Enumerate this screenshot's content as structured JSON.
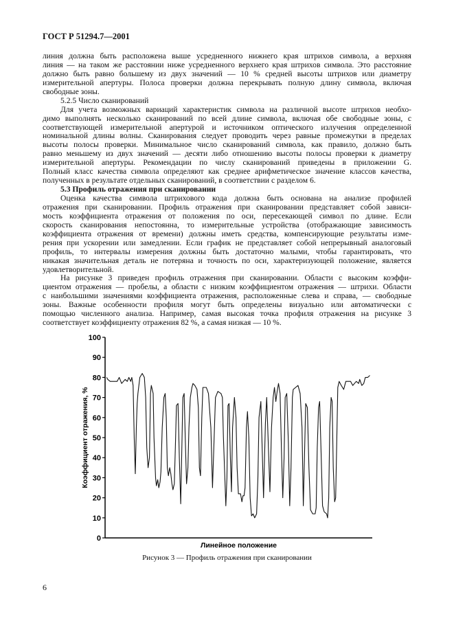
{
  "header": "ГОСТ Р 51294.7—2001",
  "body_lines": [
    {
      "t": "линия должна быть расположена выше усредненного нижнего края штрихов символа, а верхняя"
    },
    {
      "t": "линия — на таком же расстоянии ниже усредненного верхнего края штрихов символа. Это расстояние"
    },
    {
      "t": "должно быть равно большему из двух значений — 10 % средней высоты штрихов или диаметру"
    },
    {
      "t": "измерительной апертуры. Полоса проверки должна перекрывать полную длину символа, включая"
    },
    {
      "t": "свободные зоны.",
      "last": true
    },
    {
      "t": "5.2.5 Число сканирований",
      "last": true,
      "ind": true
    },
    {
      "t": "Для учета возможных вариаций характеристик символа на различной высоте штрихов необхо-",
      "ind": true
    },
    {
      "t": "димо выполнять несколько сканирований по всей длине символа, включая обе свободные зоны, с"
    },
    {
      "t": "соответствующей измерительной апертурой и источником оптического излучения определенной"
    },
    {
      "t": "номинальной длины волны. Сканирования следует проводить через равные промежутки в пределах"
    },
    {
      "t": "высоты полосы проверки. Минимальное число сканирований символа, как правило, должно быть"
    },
    {
      "t": "равно меньшему из двух значений — десяти либо отношению высоты полосы проверки к диаметру"
    },
    {
      "t": "измерительной апертуры. Рекомендации по числу сканирований приведены в приложении G."
    },
    {
      "t": "Полный класс качества символа определяют как среднее арифметическое значение классов качества,"
    },
    {
      "t": "полученных в результате отдельных сканирований, в соответствии с разделом 6.",
      "last": true
    },
    {
      "t": "5.3 Профиль отражения при сканировании",
      "last": true,
      "ind": true,
      "bold": true
    },
    {
      "t": "Оценка качества символа штрихового кода должна быть основана на анализе профилей",
      "ind": true
    },
    {
      "t": "отражения при сканировании. Профиль отражения при сканировании представляет собой зависи-"
    },
    {
      "t": "мость коэффициента отражения от положения по оси, пересекающей символ по длине. Если"
    },
    {
      "t": "скорость сканирования непостоянна, то измерительные устройства (отображающие зависимость"
    },
    {
      "t": "коэффициента отражения от времени) должны иметь средства, компенсирующие результаты изме-"
    },
    {
      "t": "рения при ускорении или замедлении. Если график не представляет собой непрерывный аналоговый"
    },
    {
      "t": "профиль, то интервалы измерения должны быть достаточно малыми, чтобы гарантировать, что"
    },
    {
      "t": "никакая значительная деталь не потеряна и точность по оси, характеризующей положение, является"
    },
    {
      "t": "удовлетворительной.",
      "last": true
    },
    {
      "t": "На рисунке 3 приведен профиль отражения при сканировании. Области с высоким коэффи-",
      "ind": true
    },
    {
      "t": "циентом отражения — пробелы, а области с низким коэффициентом отражения — штрихи. Области"
    },
    {
      "t": "с наибольшими значениями коэффициента отражения, расположенные слева и справа, — свободные"
    },
    {
      "t": "зоны. Важные особенности профиля могут быть определены визуально или автоматически с"
    },
    {
      "t": "помощью численного анализа. Например, самая высокая точка профиля отражения на рисунке 3"
    },
    {
      "t": "соответствует коэффициенту отражения 82 %, а самая низкая — 10 %.",
      "last": true
    }
  ],
  "caption": "Рисунок 3 — Профиль отражения при сканировании",
  "page_number": "6",
  "chart_data": {
    "type": "line",
    "title": "",
    "xlabel": "Линейное положение",
    "ylabel": "Коэффициент отражения, %",
    "ylim": [
      0,
      100
    ],
    "xlim": [
      0,
      100
    ],
    "yticks": [
      "0",
      "10",
      "20",
      "30",
      "40",
      "50",
      "60",
      "70",
      "80",
      "90",
      "100"
    ],
    "grid": false,
    "color": "#111111",
    "x": [
      0.6,
      1.0,
      1.9,
      4.5,
      5.3,
      6.2,
      7.5,
      8.3,
      8.9,
      9.6,
      10.0,
      10.5,
      10.9,
      11.3,
      11.7,
      12.0,
      12.3,
      13.0,
      13.9,
      14.7,
      15.2,
      15.6,
      16.1,
      16.6,
      17.0,
      17.3,
      18.0,
      18.3,
      18.9,
      19.2,
      19.7,
      20.1,
      20.6,
      20.9,
      21.4,
      22.0,
      22.5,
      22.9,
      23.3,
      23.7,
      24.2,
      24.6,
      25.0,
      25.4,
      25.9,
      26.3,
      26.7,
      27.3,
      27.8,
      28.3,
      28.7,
      29.1,
      29.6,
      30.0,
      30.5,
      31.0,
      31.4,
      31.9,
      32.5,
      32.9,
      33.6,
      34.4,
      34.9,
      35.3,
      35.7,
      36.2,
      36.6,
      37.9,
      38.7,
      39.6,
      40.2,
      40.7,
      41.3,
      42.2,
      43.4,
      43.9,
      44.3,
      45.2,
      45.6,
      46.0,
      46.4,
      46.9,
      47.3,
      47.7,
      48.4,
      49.0,
      49.4,
      49.9,
      50.7,
      51.2,
      51.6,
      52.0,
      52.4,
      52.9,
      53.3,
      53.8,
      54.3,
      54.8,
      55.4,
      56.0,
      56.7,
      57.2,
      57.6,
      58.3,
      58.9,
      59.3,
      60.0,
      60.5,
      61.0,
      61.7,
      62.3,
      62.9,
      63.4,
      63.9,
      64.4,
      64.9,
      65.5,
      66.0,
      66.5,
      67.0,
      67.4,
      68.0,
      68.6,
      69.1,
      69.6,
      70.1,
      70.4,
      71.3,
      72.2,
      73.0,
      73.7,
      74.2,
      74.7,
      75.1,
      75.7,
      76.3,
      76.9,
      77.7,
      78.6,
      79.0,
      79.4,
      79.9,
      80.3,
      80.9,
      81.4,
      82.0,
      82.9,
      83.3,
      83.7,
      84.1,
      84.6,
      85.0,
      85.4,
      85.9,
      86.3,
      86.7,
      87.1,
      87.6,
      88.4,
      89.3,
      90.1,
      91.9,
      92.7,
      94.0,
      94.9,
      95.3,
      96.1,
      96.8,
      97.4,
      98.3,
      99.1
    ],
    "y": [
      80,
      79,
      78,
      78,
      80,
      77,
      79,
      78,
      80,
      78,
      80,
      76,
      50,
      32,
      55,
      67,
      72,
      80,
      82,
      80,
      70,
      45,
      35,
      40,
      72,
      76,
      72,
      50,
      30,
      26,
      29,
      25,
      28,
      33,
      55,
      70,
      72,
      60,
      35,
      31,
      35,
      32,
      27,
      24,
      27,
      45,
      66,
      67,
      40,
      17,
      42,
      70,
      72,
      50,
      27,
      35,
      55,
      70,
      75,
      77,
      76,
      74,
      65,
      35,
      31,
      60,
      75,
      75,
      72,
      55,
      25,
      45,
      70,
      73,
      72,
      70,
      50,
      16,
      30,
      66,
      67,
      40,
      23,
      55,
      70,
      60,
      35,
      22,
      22,
      18,
      21,
      21,
      25,
      55,
      63,
      50,
      20,
      11,
      12,
      10,
      12,
      30,
      60,
      68,
      40,
      20,
      57,
      70,
      50,
      23,
      55,
      70,
      75,
      68,
      73,
      77,
      72,
      45,
      20,
      40,
      70,
      72,
      47,
      16,
      35,
      70,
      74,
      75,
      76,
      72,
      55,
      16,
      45,
      67,
      65,
      35,
      14,
      12,
      12,
      15,
      45,
      65,
      68,
      40,
      16,
      13,
      12,
      10,
      20,
      55,
      70,
      68,
      35,
      18,
      20,
      48,
      75,
      78,
      76,
      74,
      78,
      78,
      76,
      78,
      77,
      79,
      76,
      77,
      80,
      80,
      81
    ]
  }
}
